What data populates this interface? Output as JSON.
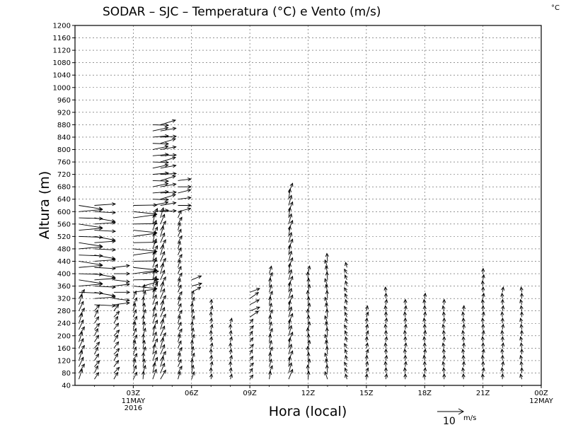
{
  "chart_data": {
    "type": "wind-vector",
    "title": "SODAR – SJC – Temperatura (°C) e Vento (m/s)",
    "unit_label": "°C",
    "ylabel": "Altura (m)",
    "xlabel": "Hora (local)",
    "ylim": [
      40,
      1200
    ],
    "yticks": [
      40,
      80,
      120,
      160,
      200,
      240,
      280,
      320,
      360,
      400,
      440,
      480,
      520,
      560,
      600,
      640,
      680,
      720,
      760,
      800,
      840,
      880,
      920,
      960,
      1000,
      1040,
      1080,
      1120,
      1160,
      1200
    ],
    "xlim": [
      0,
      24
    ],
    "xticks": [
      {
        "hour": 3,
        "label": "03Z",
        "sub": [
          "11MAY",
          "2016"
        ]
      },
      {
        "hour": 6,
        "label": "06Z",
        "sub": []
      },
      {
        "hour": 9,
        "label": "09Z",
        "sub": []
      },
      {
        "hour": 12,
        "label": "12Z",
        "sub": []
      },
      {
        "hour": 15,
        "label": "15Z",
        "sub": []
      },
      {
        "hour": 18,
        "label": "18Z",
        "sub": []
      },
      {
        "hour": 21,
        "label": "21Z",
        "sub": []
      },
      {
        "hour": 24,
        "label": "00Z",
        "sub": [
          "12MAY"
        ]
      }
    ],
    "reference_vector": {
      "value": 10,
      "label_value": "10",
      "label_unit": "m/s"
    },
    "profiles": [
      {
        "hour": 0.2,
        "top": 620,
        "speed": 4,
        "dir": 205,
        "strong_from": 340,
        "strong_speed": 9,
        "strong_dir": 272
      },
      {
        "hour": 1.0,
        "top": 620,
        "speed": 3,
        "dir": 210,
        "strong_from": 300,
        "strong_speed": 8,
        "strong_dir": 270
      },
      {
        "hour": 2.0,
        "top": 420,
        "speed": 3,
        "dir": 215,
        "strong_from": 300,
        "strong_speed": 6,
        "strong_dir": 268
      },
      {
        "hour": 3.0,
        "top": 620,
        "speed": 3,
        "dir": 200,
        "strong_from": 340,
        "strong_speed": 9,
        "strong_dir": 268
      },
      {
        "hour": 3.5,
        "top": 400,
        "speed": 3,
        "dir": 190,
        "strong_from": 360,
        "strong_speed": 6,
        "strong_dir": 260
      },
      {
        "hour": 4.0,
        "top": 880,
        "speed": 4,
        "dir": 200,
        "strong_from": 600,
        "strong_speed": 6,
        "strong_dir": 265
      },
      {
        "hour": 4.4,
        "top": 880,
        "speed": 4,
        "dir": 205,
        "strong_from": 600,
        "strong_speed": 6,
        "strong_dir": 262
      },
      {
        "hour": 5.3,
        "top": 700,
        "speed": 3,
        "dir": 200,
        "strong_from": 600,
        "strong_speed": 5,
        "strong_dir": 260
      },
      {
        "hour": 6.0,
        "top": 380,
        "speed": 3,
        "dir": 195,
        "strong_from": 340,
        "strong_speed": 4,
        "strong_dir": 250
      },
      {
        "hour": 7.0,
        "top": 300,
        "speed": 2,
        "dir": 190,
        "strong_from": 9999,
        "strong_speed": 0,
        "strong_dir": 0
      },
      {
        "hour": 8.0,
        "top": 240,
        "speed": 2,
        "dir": 185,
        "strong_from": 9999,
        "strong_speed": 0,
        "strong_dir": 0
      },
      {
        "hour": 9.0,
        "top": 340,
        "speed": 2,
        "dir": 215,
        "strong_from": 260,
        "strong_speed": 4,
        "strong_dir": 240
      },
      {
        "hour": 10.0,
        "top": 400,
        "speed": 3,
        "dir": 195,
        "strong_from": 9999,
        "strong_speed": 0,
        "strong_dir": 0
      },
      {
        "hour": 11.0,
        "top": 660,
        "speed": 4,
        "dir": 195,
        "strong_from": 9999,
        "strong_speed": 0,
        "strong_dir": 0
      },
      {
        "hour": 12.0,
        "top": 410,
        "speed": 3,
        "dir": 185,
        "strong_from": 9999,
        "strong_speed": 0,
        "strong_dir": 0
      },
      {
        "hour": 13.0,
        "top": 440,
        "speed": 3,
        "dir": 170,
        "strong_from": 9999,
        "strong_speed": 0,
        "strong_dir": 0
      },
      {
        "hour": 14.0,
        "top": 420,
        "speed": 2,
        "dir": 160,
        "strong_from": 9999,
        "strong_speed": 0,
        "strong_dir": 0
      },
      {
        "hour": 15.0,
        "top": 280,
        "speed": 2,
        "dir": 190,
        "strong_from": 9999,
        "strong_speed": 0,
        "strong_dir": 0
      },
      {
        "hour": 16.0,
        "top": 340,
        "speed": 2,
        "dir": 180,
        "strong_from": 9999,
        "strong_speed": 0,
        "strong_dir": 0
      },
      {
        "hour": 17.0,
        "top": 300,
        "speed": 2,
        "dir": 180,
        "strong_from": 9999,
        "strong_speed": 0,
        "strong_dir": 0
      },
      {
        "hour": 18.0,
        "top": 330,
        "speed": 2,
        "dir": 180,
        "strong_from": 9999,
        "strong_speed": 0,
        "strong_dir": 0
      },
      {
        "hour": 19.0,
        "top": 310,
        "speed": 2,
        "dir": 175,
        "strong_from": 9999,
        "strong_speed": 0,
        "strong_dir": 0
      },
      {
        "hour": 20.0,
        "top": 280,
        "speed": 2,
        "dir": 180,
        "strong_from": 9999,
        "strong_speed": 0,
        "strong_dir": 0
      },
      {
        "hour": 21.0,
        "top": 410,
        "speed": 2,
        "dir": 185,
        "strong_from": 9999,
        "strong_speed": 0,
        "strong_dir": 0
      },
      {
        "hour": 22.0,
        "top": 340,
        "speed": 2,
        "dir": 180,
        "strong_from": 9999,
        "strong_speed": 0,
        "strong_dir": 0
      },
      {
        "hour": 23.0,
        "top": 340,
        "speed": 2,
        "dir": 170,
        "strong_from": 9999,
        "strong_speed": 0,
        "strong_dir": 0
      }
    ]
  }
}
